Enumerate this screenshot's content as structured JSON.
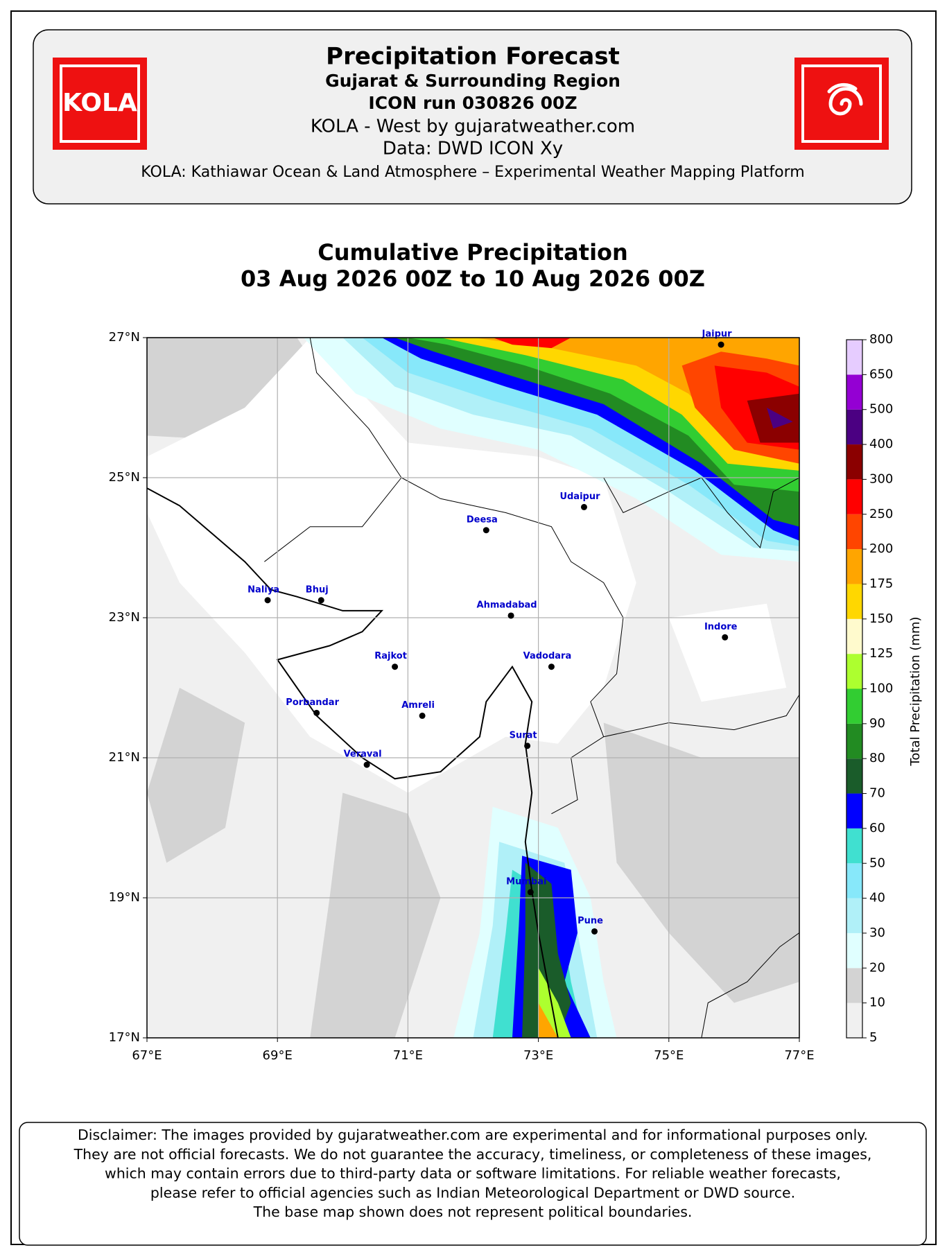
{
  "header": {
    "title": "Precipitation Forecast",
    "subtitle": "Gujarat & Surrounding Region",
    "run": "ICON run 030826 00Z",
    "source": "KOLA - West by gujaratweather.com",
    "data": "Data: DWD ICON Xy",
    "platform": "KOLA: Kathiawar Ocean & Land Atmosphere – Experimental Weather Mapping Platform",
    "logo_text": "KOLA"
  },
  "map": {
    "title": [
      "Cumulative Precipitation",
      "03 Aug 2026 00Z to 10 Aug 2026 00Z"
    ],
    "xlim": [
      67,
      77
    ],
    "ylim": [
      17,
      27
    ],
    "xticks": [
      {
        "value": 67,
        "label": "67°E"
      },
      {
        "value": 69,
        "label": "69°E"
      },
      {
        "value": 71,
        "label": "71°E"
      },
      {
        "value": 73,
        "label": "73°E"
      },
      {
        "value": 75,
        "label": "75°E"
      },
      {
        "value": 77,
        "label": "77°E"
      }
    ],
    "yticks": [
      {
        "value": 17,
        "label": "17°N"
      },
      {
        "value": 19,
        "label": "19°N"
      },
      {
        "value": 21,
        "label": "21°N"
      },
      {
        "value": 23,
        "label": "23°N"
      },
      {
        "value": 25,
        "label": "25°N"
      },
      {
        "value": 27,
        "label": "27°N"
      }
    ],
    "grid": true,
    "cities": [
      {
        "name": "Jaipur",
        "lon": 75.8,
        "lat": 26.9
      },
      {
        "name": "Udaipur",
        "lon": 73.7,
        "lat": 24.58
      },
      {
        "name": "Deesa",
        "lon": 72.2,
        "lat": 24.25
      },
      {
        "name": "Naliya",
        "lon": 68.85,
        "lat": 23.25
      },
      {
        "name": "Bhuj",
        "lon": 69.67,
        "lat": 23.25
      },
      {
        "name": "Ahmadabad",
        "lon": 72.58,
        "lat": 23.03
      },
      {
        "name": "Indore",
        "lon": 75.86,
        "lat": 22.72
      },
      {
        "name": "Rajkot",
        "lon": 70.8,
        "lat": 22.3
      },
      {
        "name": "Vadodara",
        "lon": 73.2,
        "lat": 22.3
      },
      {
        "name": "Porbandar",
        "lon": 69.6,
        "lat": 21.64
      },
      {
        "name": "Amreli",
        "lon": 71.22,
        "lat": 21.6
      },
      {
        "name": "Surat",
        "lon": 72.83,
        "lat": 21.17
      },
      {
        "name": "Veraval",
        "lon": 70.37,
        "lat": 20.9
      },
      {
        "name": "Mumbai",
        "lon": 72.88,
        "lat": 19.08
      },
      {
        "name": "Pune",
        "lon": 73.86,
        "lat": 18.52
      }
    ],
    "colorbar": {
      "label": "Total Precipitation (mm)",
      "levels": [
        5,
        10,
        20,
        30,
        40,
        50,
        60,
        70,
        80,
        90,
        100,
        125,
        150,
        175,
        200,
        250,
        300,
        400,
        500,
        650,
        800
      ],
      "colors": [
        "#f0f0f0",
        "#d3d3d3",
        "#e0ffff",
        "#b0f0f8",
        "#87e8fa",
        "#40e0d0",
        "#0000ff",
        "#1a5c2a",
        "#228b22",
        "#32cd32",
        "#adff2f",
        "#fffacd",
        "#ffd700",
        "#ffa500",
        "#ff4500",
        "#ff0000",
        "#8b0000",
        "#4b0082",
        "#9400d3",
        "#e6ccff"
      ]
    }
  },
  "disclaimer": [
    "Disclaimer: The images provided by gujaratweather.com are experimental and for informational purposes only.",
    "They are not official forecasts. We do not guarantee the accuracy, timeliness, or completeness of these images,",
    "which may contain errors due to third-party data or software limitations. For reliable weather forecasts,",
    "please refer to official agencies such as Indian Meteorological Department or DWD source.",
    "The base map shown does not represent political boundaries."
  ]
}
